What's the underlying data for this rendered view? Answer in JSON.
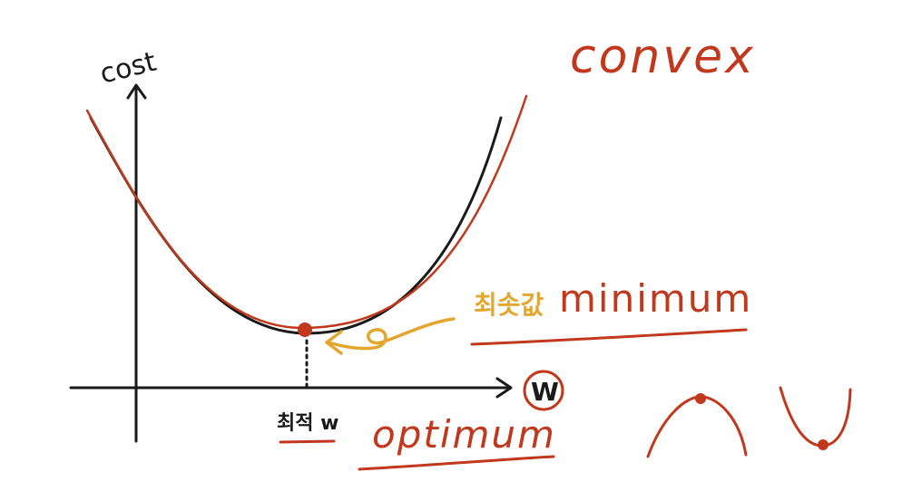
{
  "colors": {
    "black_ink": "#1a1a1a",
    "red_ink": "#c1381c",
    "gold_ink": "#e3a72f",
    "background": "#ffffff"
  },
  "axes": {
    "y_label": "cost",
    "x_label": "W"
  },
  "labels": {
    "convex": "convex",
    "minimum_korean": "최솟값",
    "minimum": "minimum",
    "optimal_w": "최적 w",
    "optimum": "optimum"
  },
  "icons": {
    "min_point": "red-dot",
    "arrow_to_min": "curly-arrow",
    "concave_sketch": "cap-curve-with-dot",
    "convex_sketch": "cup-curve-with-dot"
  }
}
